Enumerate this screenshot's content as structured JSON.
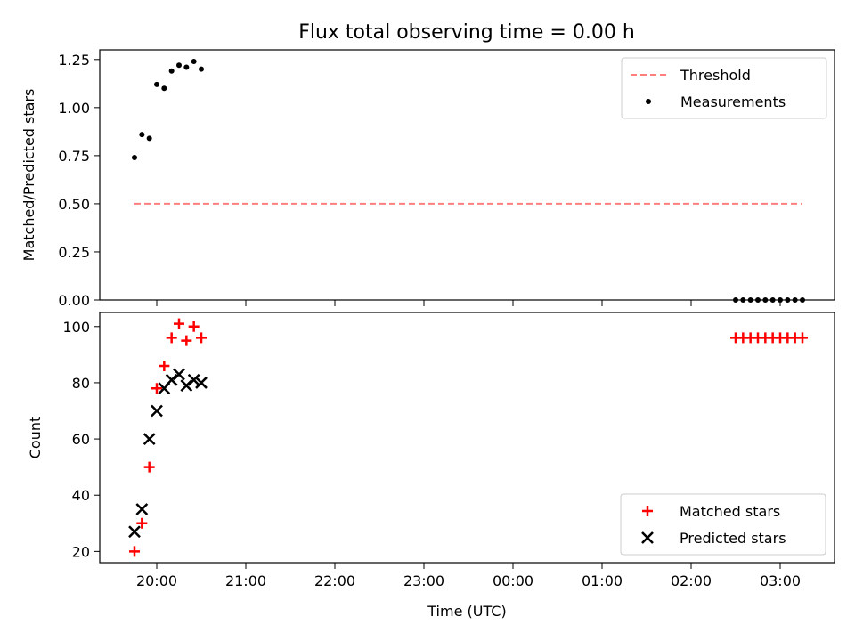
{
  "title": "Flux total observing time = 0.00 h",
  "chart_data": [
    {
      "type": "scatter",
      "panel": "top",
      "ylabel": "Matched/Predicted stars",
      "ylim": [
        0,
        1.3
      ],
      "yticks": [
        0,
        0.25,
        0.5,
        0.75,
        1.0,
        1.25
      ],
      "ytick_labels": [
        "0.00",
        "0.25",
        "0.50",
        "0.75",
        "1.00",
        "1.25"
      ],
      "legend_position": "upper right",
      "series": [
        {
          "name": "Threshold",
          "kind": "dashed-line",
          "color": "#ff7f7f",
          "x": [
            "19:45",
            "03:15"
          ],
          "y": [
            0.5,
            0.5
          ]
        },
        {
          "name": "Measurements",
          "kind": "dot",
          "color": "#000000",
          "x": [
            "19:45",
            "19:50",
            "19:55",
            "20:00",
            "20:05",
            "20:10",
            "20:15",
            "20:20",
            "20:25",
            "20:30",
            "02:30",
            "02:35",
            "02:40",
            "02:45",
            "02:50",
            "02:55",
            "03:00",
            "03:05",
            "03:10",
            "03:15"
          ],
          "y": [
            0.74,
            0.86,
            0.84,
            1.12,
            1.1,
            1.19,
            1.22,
            1.21,
            1.24,
            1.2,
            0,
            0,
            0,
            0,
            0,
            0,
            0,
            0,
            0,
            0
          ]
        }
      ]
    },
    {
      "type": "scatter",
      "panel": "bottom",
      "xlabel": "Time (UTC)",
      "ylabel": "Count",
      "ylim": [
        16,
        105
      ],
      "yticks": [
        20,
        40,
        60,
        80,
        100
      ],
      "ytick_labels": [
        "20",
        "40",
        "60",
        "80",
        "100"
      ],
      "xticks": [
        "20:00",
        "21:00",
        "22:00",
        "23:00",
        "00:00",
        "01:00",
        "02:00",
        "03:00"
      ],
      "legend_position": "lower right",
      "series": [
        {
          "name": "Matched stars",
          "kind": "plus",
          "color": "#ff0000",
          "x": [
            "19:45",
            "19:50",
            "19:55",
            "20:00",
            "20:05",
            "20:10",
            "20:15",
            "20:20",
            "20:25",
            "20:30",
            "02:30",
            "02:35",
            "02:40",
            "02:45",
            "02:50",
            "02:55",
            "03:00",
            "03:05",
            "03:10",
            "03:15"
          ],
          "y": [
            20,
            30,
            50,
            78,
            86,
            96,
            101,
            95,
            100,
            96,
            96,
            96,
            96,
            96,
            96,
            96,
            96,
            96,
            96,
            96
          ]
        },
        {
          "name": "Predicted stars",
          "kind": "x",
          "color": "#000000",
          "x": [
            "19:45",
            "19:50",
            "19:55",
            "20:00",
            "20:05",
            "20:10",
            "20:15",
            "20:20",
            "20:25",
            "20:30"
          ],
          "y": [
            27,
            35,
            60,
            70,
            78,
            81,
            83,
            79,
            81,
            80
          ]
        }
      ]
    }
  ]
}
